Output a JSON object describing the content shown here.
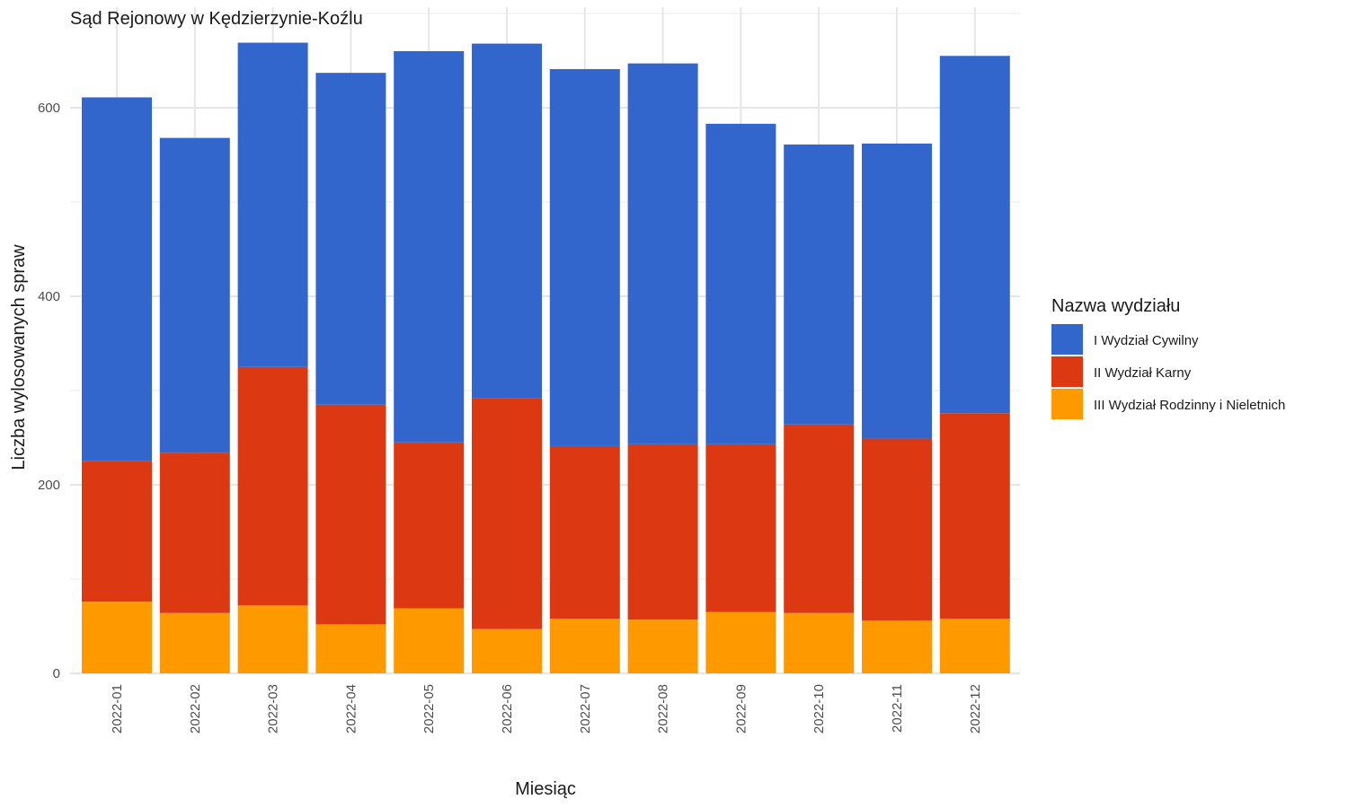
{
  "chart_data": {
    "type": "bar",
    "stacked": true,
    "title": "Sąd Rejonowy w Kędzierzynie-Koźlu",
    "xlabel": "Miesiąc",
    "ylabel": "Liczba wylosowanych spraw",
    "ylim": [
      0,
      690
    ],
    "yticks": [
      0,
      200,
      400,
      600
    ],
    "grid": true,
    "legend_position": "right",
    "categories": [
      "2022-01",
      "2022-02",
      "2022-03",
      "2022-04",
      "2022-05",
      "2022-06",
      "2022-07",
      "2022-08",
      "2022-09",
      "2022-10",
      "2022-11",
      "2022-12"
    ],
    "legend_title": "Nazwa wydziału",
    "series": [
      {
        "name": "III Wydział Rodzinny i Nieletnich",
        "color": "#FF9900",
        "values": [
          76,
          64,
          72,
          52,
          69,
          47,
          58,
          57,
          65,
          64,
          56,
          58
        ]
      },
      {
        "name": "II Wydział Karny",
        "color": "#DC3912",
        "values": [
          149,
          170,
          253,
          233,
          176,
          245,
          183,
          186,
          178,
          200,
          193,
          218
        ]
      },
      {
        "name": "I Wydział Cywilny",
        "color": "#3366CC",
        "values": [
          386,
          334,
          344,
          352,
          415,
          376,
          400,
          404,
          340,
          297,
          313,
          379
        ]
      }
    ],
    "legend_order": [
      "I Wydział Cywilny",
      "II Wydział Karny",
      "III Wydział Rodzinny i Nieletnich"
    ]
  }
}
